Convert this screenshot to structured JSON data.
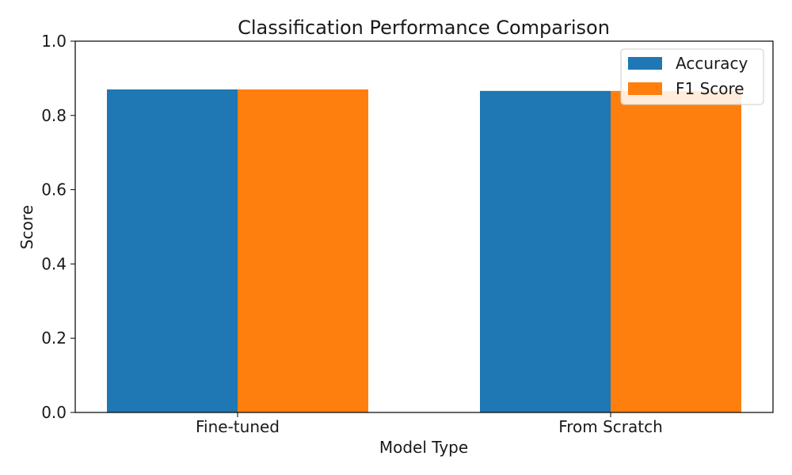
{
  "chart_data": {
    "type": "bar",
    "title": "Classification Performance Comparison",
    "xlabel": "Model Type",
    "ylabel": "Score",
    "categories": [
      "Fine-tuned",
      "From Scratch"
    ],
    "series": [
      {
        "name": "Accuracy",
        "values": [
          0.87,
          0.866
        ],
        "color": "#1f77b4"
      },
      {
        "name": "F1 Score",
        "values": [
          0.87,
          0.866
        ],
        "color": "#ff7f0e"
      }
    ],
    "ylim": [
      0,
      1.0
    ],
    "yticks": [
      "0.0",
      "0.2",
      "0.4",
      "0.6",
      "0.8",
      "1.0"
    ],
    "grid": false,
    "legend_position": "top-right"
  }
}
